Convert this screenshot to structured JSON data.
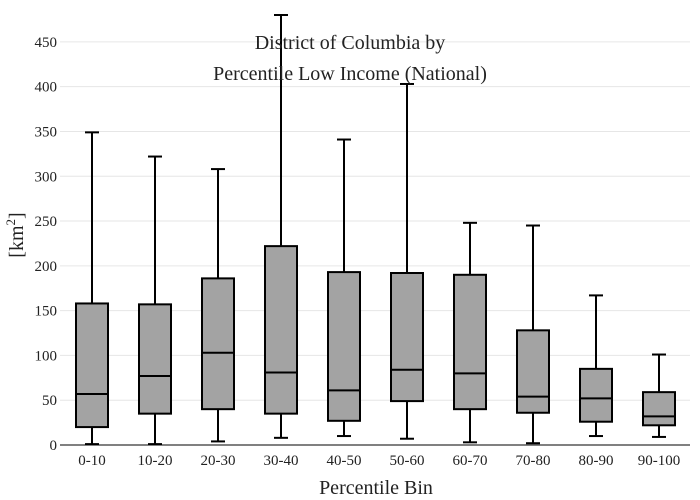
{
  "chart_data": {
    "type": "box",
    "title_line1": "District of Columbia  by",
    "title_line2": "Percentile Low Income (National)",
    "xlabel": "Percentile Bin",
    "ylabel_base": "[km",
    "ylabel_sup": "2",
    "ylabel_close": "]",
    "ylim": [
      0,
      480
    ],
    "yticks": [
      0,
      50,
      100,
      150,
      200,
      250,
      300,
      350,
      400,
      450
    ],
    "grid": true,
    "box_color": "#a3a3a3",
    "line_color": "#000000",
    "categories": [
      "0-10",
      "10-20",
      "20-30",
      "30-40",
      "40-50",
      "50-60",
      "60-70",
      "70-80",
      "80-90",
      "90-100"
    ],
    "boxes": [
      {
        "min": 1,
        "q1": 20,
        "median": 57,
        "q3": 158,
        "max": 349
      },
      {
        "min": 1,
        "q1": 35,
        "median": 77,
        "q3": 157,
        "max": 322
      },
      {
        "min": 4,
        "q1": 40,
        "median": 103,
        "q3": 186,
        "max": 308
      },
      {
        "min": 8,
        "q1": 35,
        "median": 81,
        "q3": 222,
        "max": 480
      },
      {
        "min": 10,
        "q1": 27,
        "median": 61,
        "q3": 193,
        "max": 341
      },
      {
        "min": 7,
        "q1": 49,
        "median": 84,
        "q3": 192,
        "max": 403
      },
      {
        "min": 3,
        "q1": 40,
        "median": 80,
        "q3": 190,
        "max": 248
      },
      {
        "min": 2,
        "q1": 36,
        "median": 54,
        "q3": 128,
        "max": 245
      },
      {
        "min": 10,
        "q1": 26,
        "median": 52,
        "q3": 85,
        "max": 167
      },
      {
        "min": 9,
        "q1": 22,
        "median": 32,
        "q3": 59,
        "max": 101
      }
    ]
  }
}
